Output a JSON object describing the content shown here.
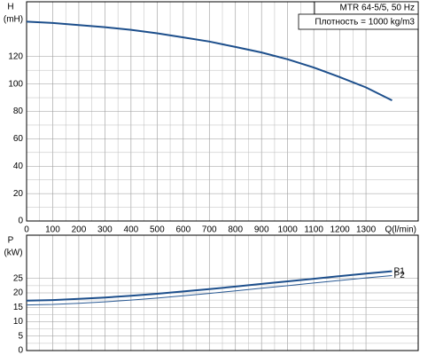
{
  "chart_data": [
    {
      "type": "line",
      "title": "MTR 64-5/5, 50 Hz",
      "subtitle": "Плотность = 1000 kg/m3",
      "y_label": "H",
      "y_unit": "(mH)",
      "x_label": "Q(l/min)",
      "x": [
        0,
        100,
        200,
        300,
        400,
        500,
        600,
        700,
        800,
        900,
        1000,
        1100,
        1200,
        1300,
        1400
      ],
      "series": [
        {
          "name": "H",
          "color": "#1d4f8c",
          "width": 2,
          "values": [
            145.5,
            144.5,
            143,
            141.5,
            139.5,
            137,
            134,
            131,
            127,
            123,
            118,
            112,
            105,
            97.5,
            88
          ]
        }
      ],
      "xlim": [
        0,
        1500
      ],
      "xticks": [
        0,
        100,
        200,
        300,
        400,
        500,
        600,
        700,
        800,
        900,
        1000,
        1100,
        1200,
        1300
      ],
      "ylim": [
        0,
        160
      ],
      "yticks": [
        0,
        20,
        40,
        60,
        80,
        100,
        120
      ],
      "grid": true
    },
    {
      "type": "line",
      "y_label": "P",
      "y_unit": "(kW)",
      "x": [
        0,
        100,
        200,
        300,
        400,
        500,
        600,
        700,
        800,
        900,
        1000,
        1100,
        1200,
        1300,
        1400
      ],
      "series": [
        {
          "name": "P1",
          "color": "#1d4f8c",
          "width": 2,
          "values": [
            17.3,
            17.5,
            17.9,
            18.4,
            19,
            19.7,
            20.5,
            21.3,
            22.2,
            23.1,
            24,
            24.9,
            25.8,
            26.7,
            27.5
          ]
        },
        {
          "name": "P2",
          "color": "#2a5a94",
          "width": 1,
          "values": [
            15.8,
            16,
            16.4,
            16.9,
            17.5,
            18.2,
            19,
            19.8,
            20.7,
            21.6,
            22.5,
            23.4,
            24.3,
            25.2,
            26
          ]
        }
      ],
      "xlim": [
        0,
        1500
      ],
      "xticks": [
        0,
        100,
        200,
        300,
        400,
        500,
        600,
        700,
        800,
        900,
        1000,
        1100,
        1200,
        1300
      ],
      "ylim": [
        0,
        40
      ],
      "yticks": [
        0,
        5,
        10,
        15,
        20,
        25
      ],
      "grid": true
    }
  ]
}
